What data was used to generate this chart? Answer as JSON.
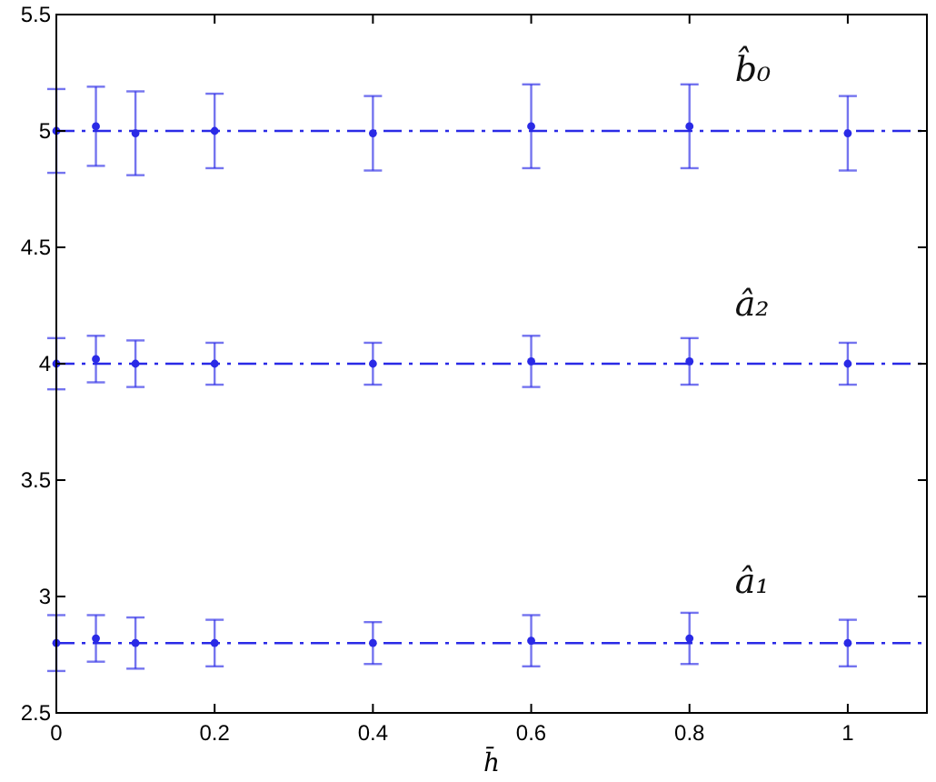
{
  "chart_data": {
    "type": "scatter",
    "xlabel": "h̄",
    "x": [
      0,
      0.05,
      0.1,
      0.2,
      0.4,
      0.6,
      0.8,
      1
    ],
    "series": [
      {
        "name": "b̂₀",
        "color": "#2a2ae6",
        "values": [
          5.0,
          5.02,
          4.99,
          5.0,
          4.99,
          5.02,
          5.02,
          4.99
        ],
        "errors": [
          0.18,
          0.17,
          0.18,
          0.16,
          0.16,
          0.18,
          0.18,
          0.16
        ]
      },
      {
        "name": "â₂",
        "color": "#2a2ae6",
        "values": [
          4.0,
          4.02,
          4.0,
          4.0,
          4.0,
          4.01,
          4.01,
          4.0
        ],
        "errors": [
          0.11,
          0.1,
          0.1,
          0.09,
          0.09,
          0.11,
          0.1,
          0.09
        ]
      },
      {
        "name": "â₁",
        "color": "#2a2ae6",
        "values": [
          2.8,
          2.82,
          2.8,
          2.8,
          2.8,
          2.81,
          2.82,
          2.8
        ],
        "errors": [
          0.12,
          0.1,
          0.11,
          0.1,
          0.09,
          0.11,
          0.11,
          0.1
        ]
      }
    ],
    "ref_lines": [
      {
        "axis": "y",
        "value": 5,
        "color": "#2a2ae6",
        "line_style": "dashed"
      },
      {
        "axis": "y",
        "value": 4,
        "color": "#2a2ae6",
        "line_style": "dashed"
      },
      {
        "axis": "y",
        "value": 2.8,
        "color": "#2a2ae6",
        "line_style": "dashed"
      }
    ],
    "xlim": [
      0,
      1.1
    ],
    "xticks": [
      0,
      0.2,
      0.4,
      0.6,
      0.8,
      1
    ],
    "ylim": [
      2.5,
      5.5
    ],
    "yticks": [
      2.5,
      3,
      3.5,
      4,
      4.5,
      5,
      5.5
    ],
    "marker": "circle",
    "grid": false
  }
}
